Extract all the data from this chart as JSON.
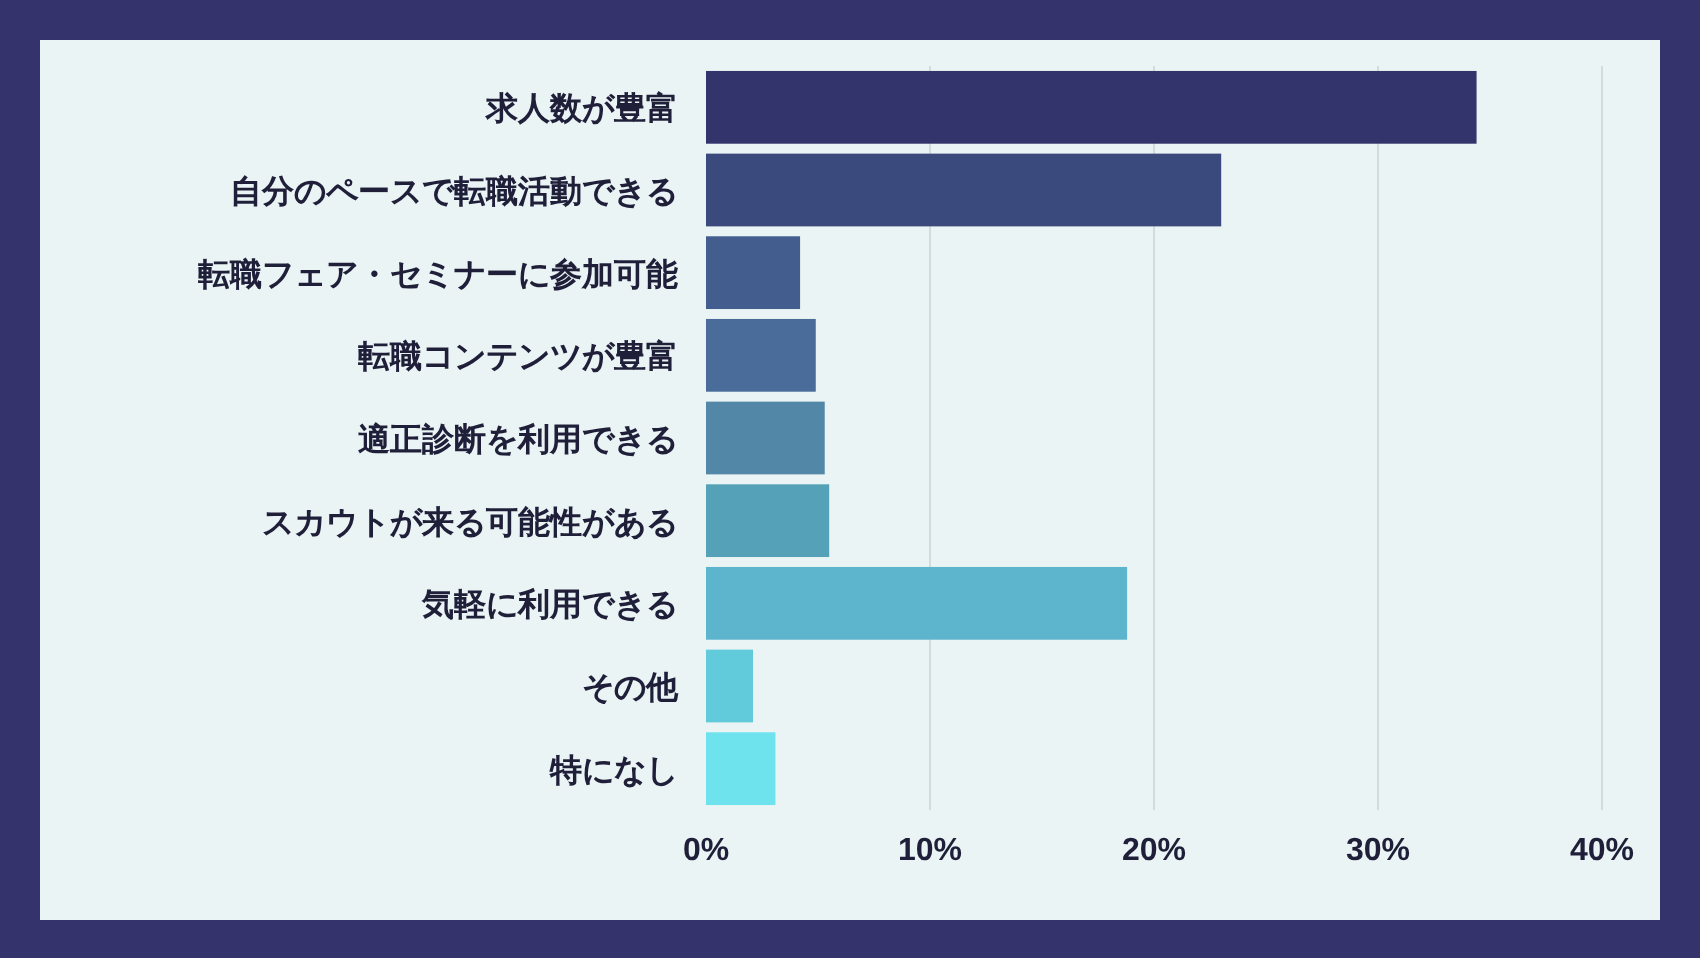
{
  "chart_data": {
    "type": "bar",
    "orientation": "horizontal",
    "categories": [
      "求人数が豊富",
      "自分のペースで転職活動できる",
      "転職フェア・セミナーに参加可能",
      "転職コンテンツが豊富",
      "適正診断を利用できる",
      "スカウトが来る可能性がある",
      "気軽に利用できる",
      "その他",
      "特になし"
    ],
    "values": [
      34.4,
      23.0,
      4.2,
      4.9,
      5.3,
      5.5,
      18.8,
      2.1,
      3.1
    ],
    "colors": [
      "#34346c",
      "#3b4a7c",
      "#435e8e",
      "#4a6c9a",
      "#5287a8",
      "#55a2b8",
      "#5cb5cc",
      "#62cbdb",
      "#6ee3ee"
    ],
    "xlim": [
      0,
      40
    ],
    "xticks": [
      {
        "value": 0,
        "label": "0%"
      },
      {
        "value": 10,
        "label": "10%"
      },
      {
        "value": 20,
        "label": "20%"
      },
      {
        "value": 30,
        "label": "30%"
      },
      {
        "value": 40,
        "label": "40%"
      }
    ],
    "grid": "x"
  }
}
